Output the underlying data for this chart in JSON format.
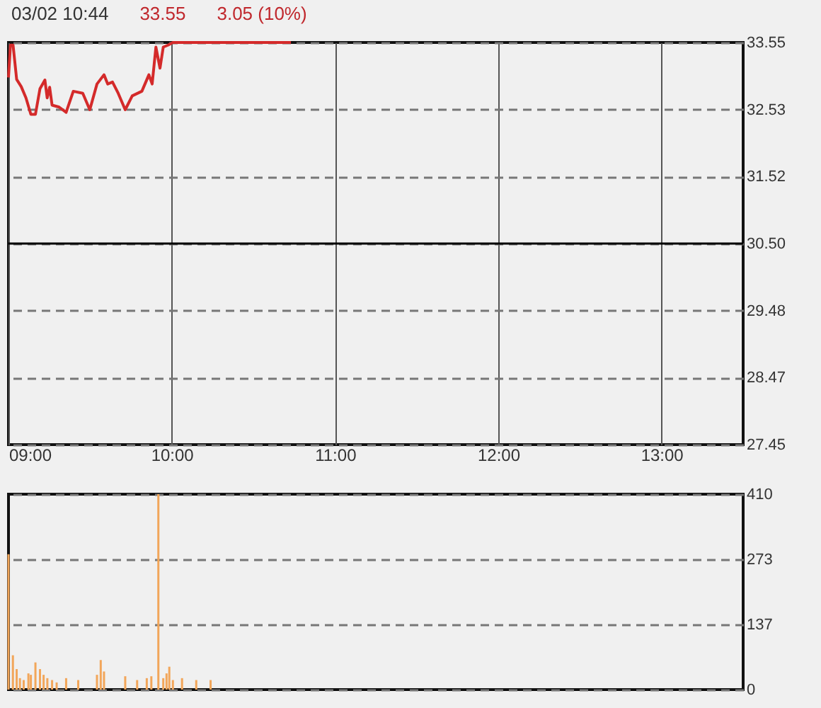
{
  "chart_data": [
    {
      "type": "line",
      "title": "03/02 10:44",
      "annotations": [
        "33.55",
        "3.05 (10%)"
      ],
      "series": [
        {
          "color": "#d42a2a",
          "x": [
            9,
            9.012,
            9.028,
            9.05,
            9.078,
            9.107,
            9.137,
            9.165,
            9.193,
            9.223,
            9.237,
            9.252,
            9.267,
            9.31,
            9.353,
            9.397,
            9.455,
            9.498,
            9.542,
            9.585,
            9.608,
            9.637,
            9.672,
            9.715,
            9.758,
            9.817,
            9.86,
            9.88,
            9.903,
            9.928,
            9.948,
            9.977,
            10.007,
            10.73
          ],
          "values": [
            33.02,
            33.51,
            33.51,
            32.99,
            32.88,
            32.71,
            32.46,
            32.46,
            32.85,
            32.98,
            32.71,
            32.87,
            32.6,
            32.57,
            32.49,
            32.81,
            32.78,
            32.53,
            32.92,
            33.06,
            32.92,
            32.95,
            32.78,
            32.53,
            32.74,
            32.81,
            33.06,
            32.92,
            33.48,
            33.16,
            33.48,
            33.51,
            33.55,
            33.55
          ]
        }
      ],
      "xlim": [
        9,
        13.5
      ],
      "xticks": [
        {
          "value": 9,
          "label": "09:00"
        },
        {
          "value": 10,
          "label": "10:00"
        },
        {
          "value": 11,
          "label": "11:00"
        },
        {
          "value": 12,
          "label": "12:00"
        },
        {
          "value": 13,
          "label": "13:00"
        }
      ],
      "ylim": [
        27.45,
        33.55
      ],
      "yticks": [
        {
          "value": 27.45,
          "label": "27.45"
        },
        {
          "value": 28.47,
          "label": "28.47"
        },
        {
          "value": 29.48,
          "label": "29.48"
        },
        {
          "value": 30.5,
          "label": "30.50"
        },
        {
          "value": 31.52,
          "label": "31.52"
        },
        {
          "value": 32.53,
          "label": "32.53"
        },
        {
          "value": 33.55,
          "label": "33.55"
        }
      ],
      "ref_lines": [
        {
          "axis": "y",
          "value": 30.5,
          "color": "#000000"
        }
      ],
      "grid": true
    },
    {
      "type": "bar",
      "x": [
        9,
        9.027,
        9.05,
        9.07,
        9.093,
        9.122,
        9.137,
        9.165,
        9.193,
        9.215,
        9.238,
        9.267,
        9.295,
        9.353,
        9.427,
        9.542,
        9.565,
        9.585,
        9.715,
        9.788,
        9.847,
        9.875,
        9.918,
        9.948,
        9.968,
        9.985,
        10.007,
        10.063,
        10.15,
        10.238
      ],
      "values": [
        284,
        72,
        43,
        24,
        20,
        34,
        31,
        57,
        43,
        31,
        24,
        20,
        15,
        24,
        20,
        31,
        62,
        38,
        28,
        20,
        24,
        28,
        410,
        24,
        34,
        48,
        20,
        24,
        20,
        20
      ],
      "color": "#f2a65a",
      "xlim": [
        9,
        13.5
      ],
      "ylim": [
        0,
        410
      ],
      "yticks": [
        0,
        137,
        273,
        410
      ],
      "tick_labels": "y",
      "grid": "y"
    }
  ]
}
